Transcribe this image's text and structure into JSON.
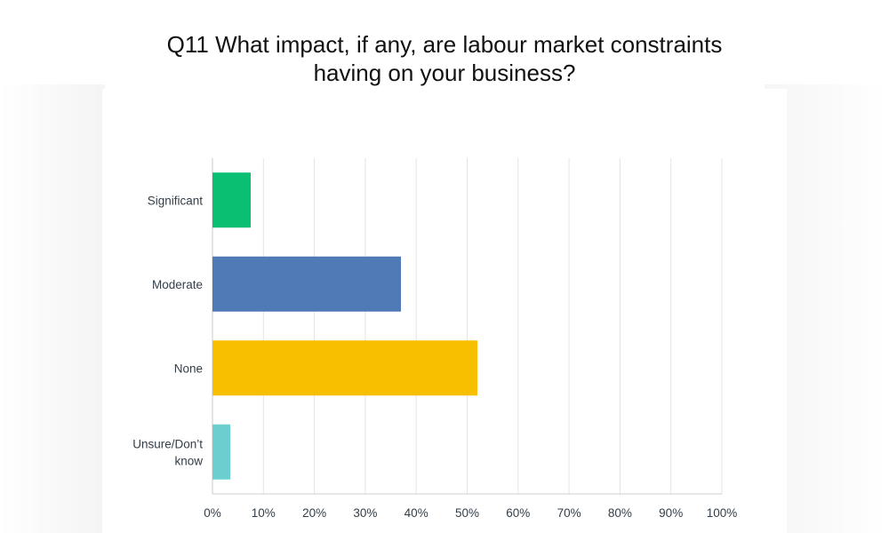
{
  "chart_data": {
    "type": "bar",
    "orientation": "horizontal",
    "title_lines": [
      "Q11 What impact, if any, are labour market constraints",
      "having on your business?"
    ],
    "categories": [
      [
        "Significant"
      ],
      [
        "Moderate"
      ],
      [
        "None"
      ],
      [
        "Unsure/Don’t",
        "know"
      ]
    ],
    "values": [
      7.5,
      37,
      52,
      3.5
    ],
    "unit": "%",
    "xlim": [
      0,
      100
    ],
    "x_ticks": [
      "0%",
      "10%",
      "20%",
      "30%",
      "40%",
      "50%",
      "60%",
      "70%",
      "80%",
      "90%",
      "100%"
    ],
    "colors": [
      "#0bbf72",
      "#4f7ab6",
      "#f8be00",
      "#6ccfcf"
    ],
    "grid": true,
    "legend": "none"
  }
}
